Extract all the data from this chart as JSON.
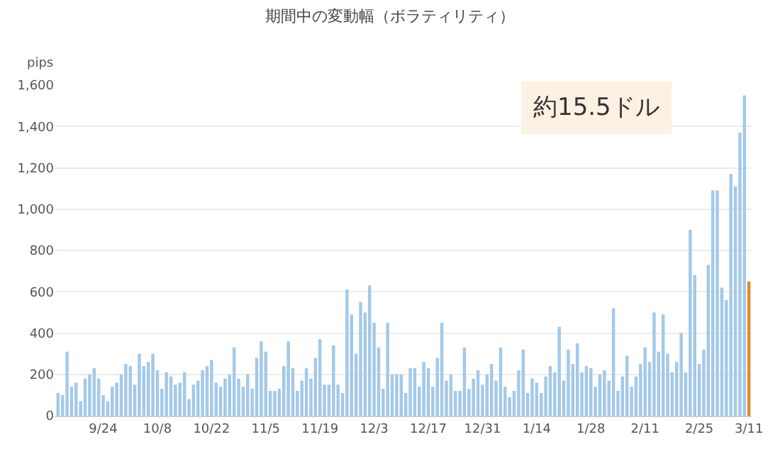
{
  "chart_data": {
    "type": "bar",
    "title": "期間中の変動幅（ボラティリティ）",
    "ylabel": "pips",
    "categories": [
      null,
      null,
      null,
      null,
      null,
      null,
      null,
      null,
      null,
      null,
      "9/24",
      null,
      null,
      null,
      null,
      null,
      null,
      null,
      null,
      null,
      null,
      null,
      "10/8",
      null,
      null,
      null,
      null,
      null,
      null,
      null,
      null,
      null,
      null,
      null,
      "10/22",
      null,
      null,
      null,
      null,
      null,
      null,
      null,
      null,
      null,
      null,
      null,
      "11/5",
      null,
      null,
      null,
      null,
      null,
      null,
      null,
      null,
      null,
      null,
      null,
      "11/19",
      null,
      null,
      null,
      null,
      null,
      null,
      null,
      null,
      null,
      null,
      null,
      "12/3",
      null,
      null,
      null,
      null,
      null,
      null,
      null,
      null,
      null,
      null,
      null,
      "12/17",
      null,
      null,
      null,
      null,
      null,
      null,
      null,
      null,
      null,
      null,
      null,
      "12/31",
      null,
      null,
      null,
      null,
      null,
      null,
      null,
      null,
      null,
      null,
      null,
      "1/14",
      null,
      null,
      null,
      null,
      null,
      null,
      null,
      null,
      null,
      null,
      null,
      "1/28",
      null,
      null,
      null,
      null,
      null,
      null,
      null,
      null,
      null,
      null,
      null,
      "2/11",
      null,
      null,
      null,
      null,
      null,
      null,
      null,
      null,
      null,
      null,
      null,
      "2/25",
      null,
      null,
      null,
      null,
      null,
      null,
      null,
      null,
      null,
      null,
      "3/11"
    ],
    "values": [
      110,
      100,
      310,
      140,
      160,
      70,
      180,
      200,
      230,
      180,
      100,
      70,
      140,
      160,
      200,
      250,
      240,
      150,
      300,
      240,
      260,
      300,
      220,
      130,
      210,
      190,
      150,
      160,
      210,
      80,
      150,
      170,
      220,
      240,
      270,
      160,
      140,
      180,
      200,
      330,
      180,
      140,
      200,
      130,
      280,
      360,
      310,
      120,
      120,
      130,
      240,
      360,
      230,
      120,
      170,
      230,
      180,
      280,
      370,
      150,
      150,
      340,
      150,
      110,
      610,
      490,
      300,
      550,
      500,
      630,
      450,
      330,
      130,
      450,
      200,
      200,
      200,
      110,
      230,
      230,
      140,
      260,
      230,
      140,
      280,
      450,
      170,
      200,
      120,
      120,
      330,
      130,
      180,
      220,
      150,
      200,
      250,
      170,
      330,
      140,
      90,
      120,
      220,
      320,
      110,
      180,
      160,
      110,
      190,
      240,
      210,
      430,
      170,
      320,
      250,
      350,
      210,
      240,
      230,
      140,
      200,
      220,
      170,
      520,
      120,
      190,
      290,
      140,
      190,
      250,
      330,
      260,
      500,
      310,
      490,
      300,
      210,
      260,
      400,
      210,
      900,
      680,
      250,
      320,
      730,
      1090,
      1090,
      620,
      560,
      1170,
      1110,
      1370,
      1550,
      650
    ],
    "colors": [
      "#a3c9e8",
      "#a3c9e8",
      "#a3c9e8",
      "#a3c9e8",
      "#a3c9e8",
      "#a3c9e8",
      "#a3c9e8",
      "#a3c9e8",
      "#a3c9e8",
      "#a3c9e8",
      "#a3c9e8",
      "#a3c9e8",
      "#a3c9e8",
      "#a3c9e8",
      "#a3c9e8",
      "#a3c9e8",
      "#a3c9e8",
      "#a3c9e8",
      "#a3c9e8",
      "#a3c9e8",
      "#a3c9e8",
      "#a3c9e8",
      "#a3c9e8",
      "#a3c9e8",
      "#a3c9e8",
      "#a3c9e8",
      "#a3c9e8",
      "#a3c9e8",
      "#a3c9e8",
      "#a3c9e8",
      "#a3c9e8",
      "#a3c9e8",
      "#a3c9e8",
      "#a3c9e8",
      "#a3c9e8",
      "#a3c9e8",
      "#a3c9e8",
      "#a3c9e8",
      "#a3c9e8",
      "#a3c9e8",
      "#a3c9e8",
      "#a3c9e8",
      "#a3c9e8",
      "#a3c9e8",
      "#a3c9e8",
      "#a3c9e8",
      "#a3c9e8",
      "#a3c9e8",
      "#a3c9e8",
      "#a3c9e8",
      "#a3c9e8",
      "#a3c9e8",
      "#a3c9e8",
      "#a3c9e8",
      "#a3c9e8",
      "#a3c9e8",
      "#a3c9e8",
      "#a3c9e8",
      "#a3c9e8",
      "#a3c9e8",
      "#a3c9e8",
      "#a3c9e8",
      "#a3c9e8",
      "#a3c9e8",
      "#a3c9e8",
      "#a3c9e8",
      "#a3c9e8",
      "#a3c9e8",
      "#a3c9e8",
      "#a3c9e8",
      "#a3c9e8",
      "#a3c9e8",
      "#a3c9e8",
      "#a3c9e8",
      "#a3c9e8",
      "#a3c9e8",
      "#a3c9e8",
      "#a3c9e8",
      "#a3c9e8",
      "#a3c9e8",
      "#a3c9e8",
      "#a3c9e8",
      "#a3c9e8",
      "#a3c9e8",
      "#a3c9e8",
      "#a3c9e8",
      "#a3c9e8",
      "#a3c9e8",
      "#a3c9e8",
      "#a3c9e8",
      "#a3c9e8",
      "#a3c9e8",
      "#a3c9e8",
      "#a3c9e8",
      "#a3c9e8",
      "#a3c9e8",
      "#a3c9e8",
      "#a3c9e8",
      "#a3c9e8",
      "#a3c9e8",
      "#a3c9e8",
      "#a3c9e8",
      "#a3c9e8",
      "#a3c9e8",
      "#a3c9e8",
      "#a3c9e8",
      "#a3c9e8",
      "#a3c9e8",
      "#a3c9e8",
      "#a3c9e8",
      "#a3c9e8",
      "#a3c9e8",
      "#a3c9e8",
      "#a3c9e8",
      "#a3c9e8",
      "#a3c9e8",
      "#a3c9e8",
      "#a3c9e8",
      "#a3c9e8",
      "#a3c9e8",
      "#a3c9e8",
      "#a3c9e8",
      "#a3c9e8",
      "#a3c9e8",
      "#a3c9e8",
      "#a3c9e8",
      "#a3c9e8",
      "#a3c9e8",
      "#a3c9e8",
      "#a3c9e8",
      "#a3c9e8",
      "#a3c9e8",
      "#a3c9e8",
      "#a3c9e8",
      "#a3c9e8",
      "#a3c9e8",
      "#a3c9e8",
      "#a3c9e8",
      "#a3c9e8",
      "#a3c9e8",
      "#a3c9e8",
      "#a3c9e8",
      "#a3c9e8",
      "#a3c9e8",
      "#a3c9e8",
      "#a3c9e8",
      "#a3c9e8",
      "#a3c9e8",
      "#a3c9e8",
      "#a3c9e8",
      "#a3c9e8",
      "#a3c9e8",
      "#a3c9e8",
      "#e0892b"
    ],
    "ylim": [
      0,
      1600
    ],
    "yticks": [
      0,
      200,
      400,
      600,
      800,
      {
        "value": 1000,
        "label": "1,000"
      },
      {
        "value": 1200,
        "label": "1,200"
      },
      {
        "value": 1400,
        "label": "1,400"
      },
      {
        "value": 1600,
        "label": "1,600"
      }
    ],
    "grid": "y",
    "annotations": [
      "約15.5ドル"
    ]
  }
}
